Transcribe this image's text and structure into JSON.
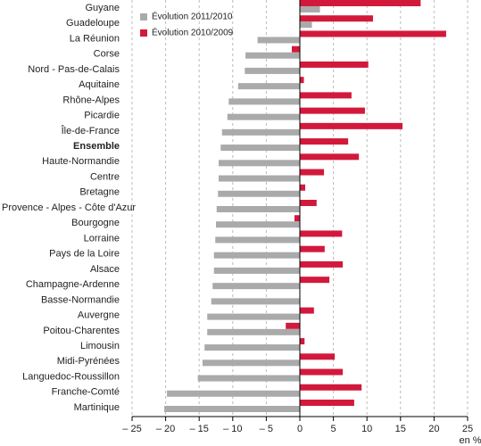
{
  "chart_data": {
    "type": "hbar",
    "categories": [
      "Guyane",
      "Guadeloupe",
      "La Réunion",
      "Corse",
      "Nord - Pas-de-Calais",
      "Aquitaine",
      "Rhône-Alpes",
      "Picardie",
      "Île-de-France",
      "Ensemble",
      "Haute-Normandie",
      "Centre",
      "Bretagne",
      "Provence - Alpes - Côte d'Azur",
      "Bourgogne",
      "Lorraine",
      "Pays de la Loire",
      "Alsace",
      "Champagne-Ardenne",
      "Basse-Normandie",
      "Auvergne",
      "Poitou-Charentes",
      "Limousin",
      "Midi-Pyrénées",
      "Languedoc-Roussillon",
      "Franche-Comté",
      "Martinique"
    ],
    "bold_categories": [
      9
    ],
    "series": [
      {
        "name": "Évolution 2011/2010",
        "color": "#aaaaaa",
        "values": [
          3,
          1.8,
          -6.3,
          -8.1,
          -8.2,
          -9.2,
          -10.6,
          -10.8,
          -11.6,
          -11.8,
          -12.1,
          -12.1,
          -12.2,
          -12.4,
          -12.5,
          -12.6,
          -12.8,
          -12.8,
          -13,
          -13.2,
          -13.8,
          -13.8,
          -14.2,
          -14.5,
          -15.2,
          -19.8,
          -20.2
        ]
      },
      {
        "name": "Évolution 2010/2009",
        "color": "#d2193c",
        "values": [
          18,
          10.9,
          21.8,
          -1.2,
          10.2,
          0.6,
          7.7,
          9.7,
          15.3,
          7.2,
          8.8,
          3.6,
          0.8,
          2.5,
          -0.8,
          6.3,
          3.7,
          6.4,
          4.4,
          null,
          2.1,
          -2.1,
          0.7,
          5.2,
          6.4,
          9.2,
          8.1
        ]
      }
    ],
    "xlabel": "en %",
    "xlim": [
      -25,
      25
    ],
    "xticks": [
      {
        "value": -25,
        "label": "– 25"
      },
      {
        "value": -20,
        "label": "– 20"
      },
      {
        "value": -15,
        "label": "– 15"
      },
      {
        "value": -10,
        "label": "– 10"
      },
      {
        "value": -5,
        "label": "– 5"
      },
      0,
      5,
      10,
      15,
      20,
      25
    ],
    "grid": true
  }
}
